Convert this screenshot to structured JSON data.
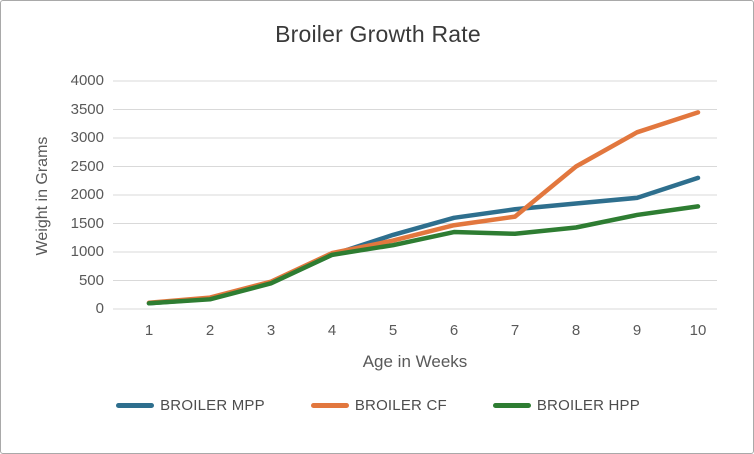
{
  "frame": {
    "background": "#ffffff",
    "border_color": "#a9a9a9"
  },
  "chart_data": {
    "type": "line",
    "title": "Broiler Growth Rate",
    "xlabel": "Age in Weeks",
    "ylabel": "Weight in Grams",
    "x": [
      1,
      2,
      3,
      4,
      5,
      6,
      7,
      8,
      9,
      10
    ],
    "y_ticks": [
      0,
      500,
      1000,
      1500,
      2000,
      2500,
      3000,
      3500,
      4000
    ],
    "ylim": [
      0,
      4000
    ],
    "grid": "horizontal",
    "gridline_color": "#d9d9d9",
    "tick_text_color": "#595959",
    "title_color": "#3a3a3a",
    "legend_position": "bottom",
    "series": [
      {
        "name": "BROILER MPP",
        "color": "#2e6f8e",
        "values": [
          100,
          180,
          460,
          950,
          1300,
          1600,
          1750,
          1850,
          1950,
          2300
        ]
      },
      {
        "name": "BROILER CF",
        "color": "#e2773e",
        "values": [
          110,
          200,
          480,
          980,
          1200,
          1470,
          1620,
          2500,
          3100,
          3450
        ]
      },
      {
        "name": "BROILER HPP",
        "color": "#2e7d32",
        "values": [
          100,
          170,
          450,
          950,
          1120,
          1350,
          1320,
          1430,
          1650,
          1800
        ]
      }
    ]
  }
}
